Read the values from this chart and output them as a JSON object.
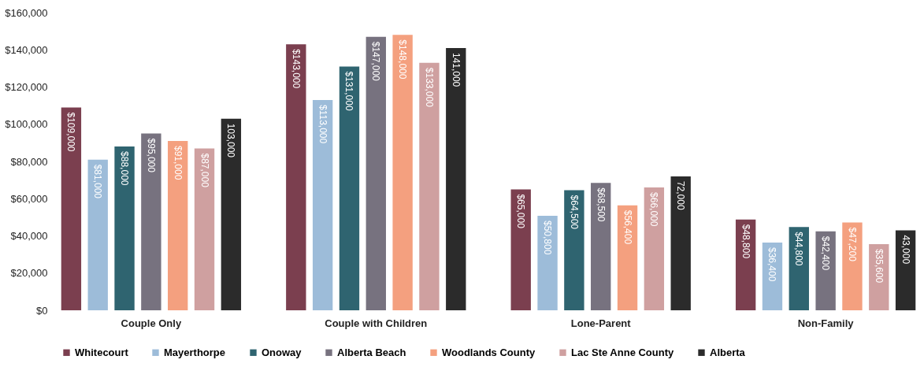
{
  "chart_data": {
    "type": "bar",
    "categories": [
      "Couple Only",
      "Couple with Children",
      "Lone-Parent",
      "Non-Family"
    ],
    "series": [
      {
        "name": "Whitecourt",
        "color": "#7b3f4f",
        "values": [
          109000,
          143000,
          65000,
          48800
        ],
        "value_labels": [
          "$109,000",
          "$143,000",
          "$65,000",
          "$48,800"
        ]
      },
      {
        "name": "Mayerthorpe",
        "color": "#9dbcd9",
        "values": [
          81000,
          113000,
          50800,
          36400
        ],
        "value_labels": [
          "$81,000",
          "$113,000",
          "$50,800",
          "$36,400"
        ]
      },
      {
        "name": "Onoway",
        "color": "#2f6470",
        "values": [
          88000,
          131000,
          64500,
          44800
        ],
        "value_labels": [
          "$88,000",
          "$131,000",
          "$64,500",
          "$44,800"
        ]
      },
      {
        "name": "Alberta Beach",
        "color": "#77727f",
        "values": [
          95000,
          147000,
          68500,
          42400
        ],
        "value_labels": [
          "$95,000",
          "$147,000",
          "$68,500",
          "$42,400"
        ]
      },
      {
        "name": "Woodlands County",
        "color": "#f4a07f",
        "values": [
          91000,
          148000,
          56400,
          47200
        ],
        "value_labels": [
          "$91,000",
          "$148,000",
          "$56,400",
          "$47,200"
        ]
      },
      {
        "name": "Lac Ste Anne County",
        "color": "#cfa0a0",
        "values": [
          87000,
          133000,
          66000,
          35600
        ],
        "value_labels": [
          "$87,000",
          "$133,000",
          "$66,000",
          "$35,600"
        ]
      },
      {
        "name": "Alberta",
        "color": "#2b2b2b",
        "values": [
          103000,
          141000,
          72000,
          43000
        ],
        "value_labels": [
          "103,000",
          "141,000",
          "72,000",
          "43,000"
        ]
      }
    ],
    "ylim": [
      0,
      160000
    ],
    "yticks": [
      {
        "value": 0,
        "label": "$0"
      },
      {
        "value": 20000,
        "label": "$20,000"
      },
      {
        "value": 40000,
        "label": "$40,000"
      },
      {
        "value": 60000,
        "label": "$60,000"
      },
      {
        "value": 80000,
        "label": "$80,000"
      },
      {
        "value": 100000,
        "label": "$100,000"
      },
      {
        "value": 120000,
        "label": "$120,000"
      },
      {
        "value": 140000,
        "label": "$140,000"
      },
      {
        "value": 160000,
        "label": "$160,000"
      }
    ],
    "grid": false,
    "legend": "bottom"
  }
}
